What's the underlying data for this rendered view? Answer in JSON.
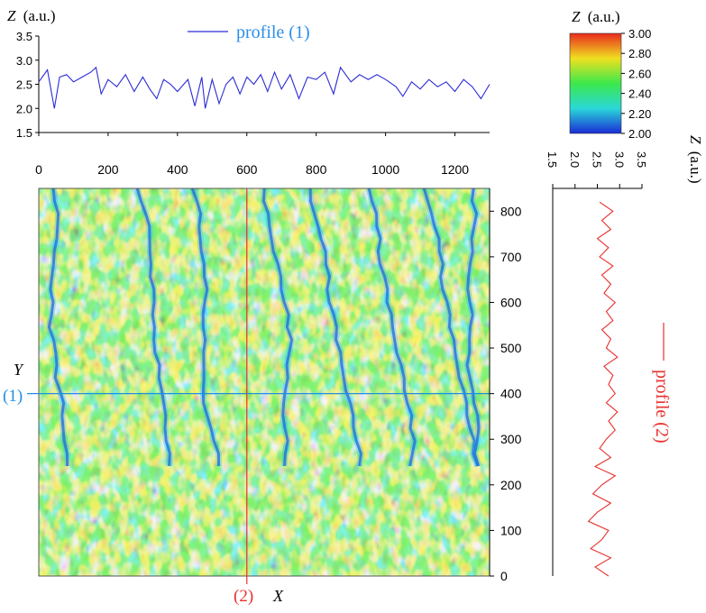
{
  "chart_data": [
    {
      "type": "line",
      "name": "profile_1",
      "ylabel_var": "Z",
      "ylabel_unit": "(a.u.)",
      "legend": "profile (1)",
      "color": "#2b2bd6",
      "legend_color": "#2a8fe8",
      "xlim": [
        0,
        1300
      ],
      "ylim": [
        1.5,
        3.5
      ],
      "xticks": [
        "0",
        "200",
        "400",
        "600",
        "800",
        "1000",
        "1200"
      ],
      "yticks": [
        "1.5",
        "2.0",
        "2.5",
        "3.0",
        "3.5"
      ],
      "x": [
        0,
        25,
        45,
        60,
        80,
        100,
        125,
        150,
        165,
        180,
        200,
        225,
        250,
        275,
        300,
        320,
        340,
        360,
        380,
        400,
        430,
        450,
        470,
        480,
        500,
        520,
        540,
        560,
        580,
        600,
        620,
        640,
        660,
        680,
        700,
        725,
        750,
        775,
        800,
        825,
        850,
        870,
        900,
        925,
        950,
        975,
        1000,
        1030,
        1050,
        1075,
        1100,
        1125,
        1150,
        1175,
        1200,
        1225,
        1250,
        1275,
        1300
      ],
      "y": [
        2.55,
        2.8,
        2.0,
        2.65,
        2.7,
        2.55,
        2.65,
        2.75,
        2.85,
        2.3,
        2.6,
        2.45,
        2.7,
        2.35,
        2.65,
        2.4,
        2.2,
        2.6,
        2.5,
        2.35,
        2.6,
        2.05,
        2.65,
        2.0,
        2.6,
        2.1,
        2.5,
        2.65,
        2.3,
        2.65,
        2.5,
        2.7,
        2.35,
        2.75,
        2.4,
        2.7,
        2.2,
        2.65,
        2.6,
        2.75,
        2.3,
        2.85,
        2.55,
        2.7,
        2.6,
        2.7,
        2.6,
        2.45,
        2.25,
        2.55,
        2.4,
        2.6,
        2.45,
        2.55,
        2.35,
        2.6,
        2.45,
        2.2,
        2.5
      ]
    },
    {
      "type": "line",
      "name": "profile_2",
      "orientation": "vertical",
      "xlabel_var": "Z",
      "xlabel_unit": "(a.u.)",
      "legend": "profile (2)",
      "color": "#e8302e",
      "legend_color": "#e8302e",
      "zlim": [
        1.5,
        3.5
      ],
      "ylim": [
        0,
        850
      ],
      "zticks": [
        "1.5",
        "2.0",
        "2.5",
        "3.0",
        "3.5"
      ],
      "y": [
        820,
        800,
        780,
        760,
        740,
        720,
        700,
        680,
        660,
        640,
        620,
        600,
        580,
        560,
        540,
        520,
        500,
        480,
        460,
        440,
        420,
        400,
        380,
        360,
        340,
        320,
        300,
        280,
        260,
        240,
        220,
        200,
        180,
        160,
        140,
        120,
        100,
        80,
        60,
        40,
        20,
        0
      ],
      "z": [
        2.55,
        2.85,
        2.6,
        2.8,
        2.5,
        2.75,
        2.55,
        2.85,
        2.6,
        2.8,
        2.65,
        2.9,
        2.7,
        2.85,
        2.6,
        2.8,
        2.7,
        2.95,
        2.65,
        2.85,
        2.75,
        2.9,
        2.7,
        2.95,
        2.75,
        2.9,
        2.7,
        2.55,
        2.8,
        2.45,
        2.9,
        2.6,
        2.4,
        2.8,
        2.5,
        2.3,
        2.75,
        2.6,
        2.35,
        2.8,
        2.45,
        2.75
      ]
    },
    {
      "type": "heatmap",
      "name": "surface_map",
      "xlabel": "X",
      "ylabel": "Y",
      "xlim": [
        0,
        1300
      ],
      "ylim": [
        0,
        850
      ],
      "xticks": [
        "0",
        "200",
        "400",
        "600",
        "800",
        "1000",
        "1200"
      ],
      "yticks": [
        "0",
        "100",
        "200",
        "300",
        "400",
        "500",
        "600",
        "700",
        "800"
      ],
      "marker_row_y": 400,
      "marker_col_x": 600,
      "row_marker_label": "(1)",
      "col_marker_label": "(2)",
      "row_marker_color": "#1f8fe0",
      "col_marker_color": "#e8302e",
      "colormap": [
        "#1a2cd6",
        "#1fa8f0",
        "#2bd66a",
        "#3ce84a",
        "#c8ec2a",
        "#f2a81c",
        "#e82a1e"
      ]
    },
    {
      "type": "colorbar",
      "name": "z_colorbar",
      "title_var": "Z",
      "title_unit": "(a.u.)",
      "ticks": [
        "3.00",
        "2.80",
        "2.60",
        "2.40",
        "2.20",
        "2.00"
      ],
      "colors": [
        "#e82a1e",
        "#f0e020",
        "#3ce84a",
        "#2ad8d8",
        "#1a2cd6"
      ]
    }
  ]
}
